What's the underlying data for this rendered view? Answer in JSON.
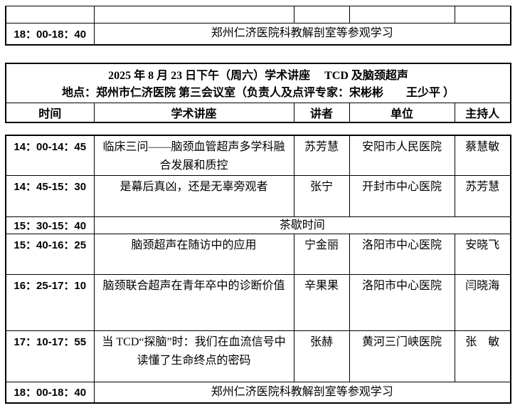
{
  "document": {
    "title": "2025 年 8 月 23 日下午（周六）学术讲座　 TCD 及脑颈超声",
    "location": "地点：郑州市仁济医院 第三会议室（负责人及点评专家：宋彬彬　　王少平 ）"
  },
  "columns": {
    "time": "时间",
    "lecture": "学术讲座",
    "speaker": "讲者",
    "unit": "单位",
    "host": "主持人"
  },
  "prev_table": {
    "time": "18：00-18：40",
    "activity": "郑州仁济医院科教解剖室等参观学习"
  },
  "schedule": [
    {
      "time": "14：00-14：45",
      "topic": "临床三问——脑颈血管超声多学科融合发展和质控",
      "speaker": "苏芳慧",
      "unit": "安阳市人民医院",
      "host": "蔡慧敏"
    },
    {
      "time": "14：45-15：30",
      "topic": "是幕后真凶，还是无辜旁观者",
      "speaker": "张宁",
      "unit": "开封市中心医院",
      "host": "苏芳慧"
    },
    {
      "time": "15：30-15：40",
      "merged": "茶歇时间"
    },
    {
      "time": "15：40-16：25",
      "topic": "脑颈超声在随访中的应用",
      "speaker": "宁金丽",
      "unit": "洛阳市中心医院",
      "host": "安晓飞"
    },
    {
      "time": "16：25-17：10",
      "topic": "脑颈联合超声在青年卒中的诊断价值",
      "speaker": "辛果果",
      "unit": "洛阳市中心医院",
      "host": "闫晓海"
    },
    {
      "time": "17：10-17：55",
      "topic": "当 TCD“探脑”时：我们在血流信号中读懂了生命终点的密码",
      "speaker": "张赫",
      "unit": "黄河三门峡医院",
      "host": "张　敏"
    },
    {
      "time": "18：00-18：40",
      "merged": "郑州仁济医院科教解剖室等参观学习"
    }
  ]
}
